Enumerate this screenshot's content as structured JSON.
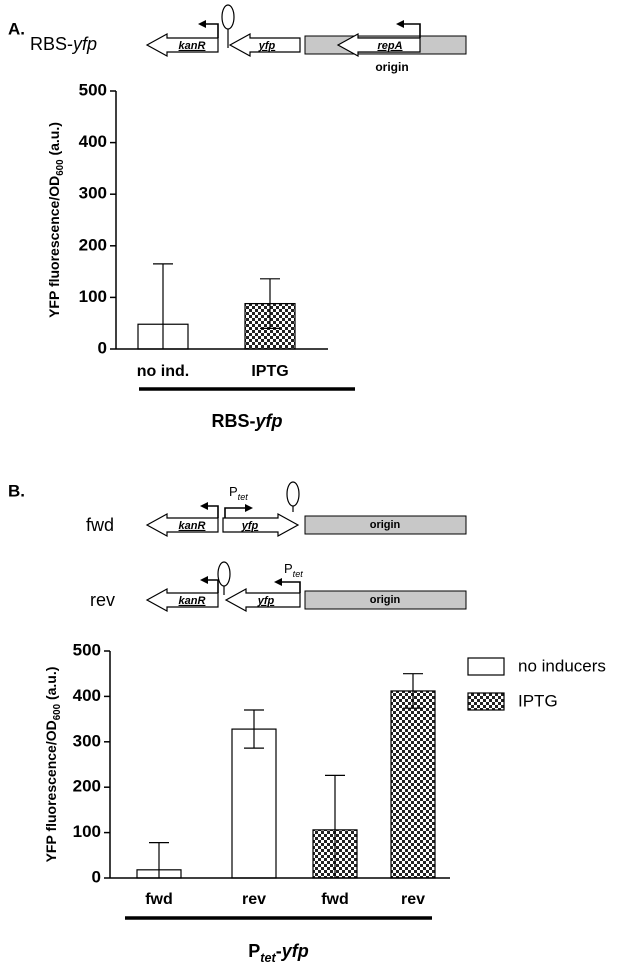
{
  "chart_data": [
    {
      "type": "bar",
      "panel_label": "A.",
      "ylabel": [
        {
          "text": "YFP fluorescence/OD"
        },
        {
          "text": "600",
          "style": "sub"
        },
        {
          "text": " (a.u.)"
        }
      ],
      "categories": [
        "no ind.",
        "IPTG"
      ],
      "values": [
        48,
        88
      ],
      "errors": [
        117,
        48
      ],
      "fills": [
        "white",
        "checker"
      ],
      "group_label": [
        {
          "text": "RBS-"
        },
        {
          "text": "yfp",
          "style": "italic"
        }
      ],
      "ylim": [
        0,
        500
      ],
      "yticks": [
        0,
        100,
        200,
        300,
        400,
        500
      ]
    },
    {
      "type": "bar",
      "panel_label": "B.",
      "ylabel": [
        {
          "text": "YFP fluorescence/OD"
        },
        {
          "text": "600",
          "style": "sub"
        },
        {
          "text": " (a.u.)"
        }
      ],
      "categories": [
        "fwd",
        "rev",
        "fwd",
        "rev"
      ],
      "series": [
        {
          "name": "no inducers",
          "fill": "white",
          "values": [
            18,
            328,
            null,
            null
          ],
          "errors": [
            60,
            42,
            null,
            null
          ]
        },
        {
          "name": "IPTG",
          "fill": "checker",
          "values": [
            null,
            null,
            106,
            412
          ],
          "errors": [
            null,
            null,
            120,
            38
          ]
        }
      ],
      "group_label": [
        {
          "text": "P"
        },
        {
          "text": "tet",
          "style": "sub-italic"
        },
        {
          "text": "-"
        },
        {
          "text": "yfp",
          "style": "italic"
        }
      ],
      "legend": "right",
      "ylim": [
        0,
        500
      ],
      "yticks": [
        0,
        100,
        200,
        300,
        400,
        500
      ]
    }
  ],
  "diagrams": [
    {
      "name": [
        {
          "text": "RBS-"
        },
        {
          "text": "yfp",
          "style": "italic"
        }
      ],
      "gene1": "kanR",
      "gene2": "yfp",
      "gene3": "repA",
      "origin": "origin"
    },
    {
      "name": [
        {
          "text": "fwd"
        }
      ],
      "gene1": "kanR",
      "promoter": [
        {
          "text": "P"
        },
        {
          "text": "tet",
          "style": "sub-italic"
        }
      ],
      "gene2": "yfp",
      "origin": "origin"
    },
    {
      "name": [
        {
          "text": "rev"
        }
      ],
      "gene1": "kanR",
      "promoter": [
        {
          "text": "P"
        },
        {
          "text": "tet",
          "style": "sub-italic"
        }
      ],
      "gene2": "yfp",
      "origin": "origin"
    }
  ]
}
